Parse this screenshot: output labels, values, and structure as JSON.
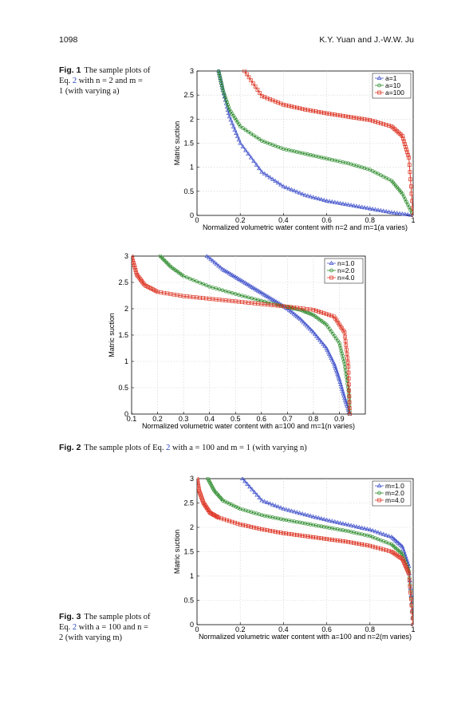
{
  "header": {
    "page_number": "1098",
    "authors": "K.Y. Yuan and J.-W.W. Ju"
  },
  "captions": [
    {
      "label": "Fig. 1",
      "pre": "The sample plots of",
      "line2a": "Eq. ",
      "eq": "2",
      "line2b": " with n = 2 and m =",
      "line3": "1 (with varying a)"
    },
    {
      "label": "Fig. 2",
      "pre": "The sample plots of Eq. ",
      "eq": "2",
      "post": " with a = 100 and m = 1 (with varying n)"
    },
    {
      "label": "Fig. 3",
      "pre": "The sample plots of",
      "line2a": "Eq. ",
      "eq": "2",
      "line2b": " with a = 100 and n =",
      "line3": "2 (with varying m)"
    }
  ],
  "chart_data": [
    {
      "type": "line",
      "xlabel": "Normalized volumetric water content with n=2 and m=1(a varies)",
      "ylabel": "Matric suction",
      "xlim": [
        0,
        1
      ],
      "ylim": [
        0,
        3
      ],
      "xticks": [
        "0",
        "0.2",
        "0.4",
        "0.6",
        "0.8",
        "1"
      ],
      "yticks": [
        "0",
        "0.5",
        "1",
        "1.5",
        "2",
        "2.5",
        "3"
      ],
      "grid": true,
      "legend_position": "top-right",
      "series": [
        {
          "name": "a=1",
          "color": "#4455cc",
          "marker": "triangle",
          "x": [
            0.1,
            0.12,
            0.15,
            0.2,
            0.3,
            0.4,
            0.5,
            0.6,
            0.7,
            0.8,
            0.9,
            1.0
          ],
          "y": [
            3.0,
            2.6,
            2.05,
            1.5,
            0.9,
            0.6,
            0.42,
            0.3,
            0.22,
            0.14,
            0.06,
            0.0
          ]
        },
        {
          "name": "a=10",
          "color": "#2a8a2a",
          "marker": "circle",
          "x": [
            0.1,
            0.12,
            0.15,
            0.2,
            0.3,
            0.4,
            0.5,
            0.6,
            0.7,
            0.8,
            0.9,
            0.95,
            1.0
          ],
          "y": [
            3.0,
            2.6,
            2.2,
            1.85,
            1.55,
            1.38,
            1.28,
            1.18,
            1.08,
            0.95,
            0.72,
            0.45,
            0.0
          ]
        },
        {
          "name": "a=100",
          "color": "#dd3322",
          "marker": "square",
          "x": [
            0.22,
            0.3,
            0.4,
            0.5,
            0.6,
            0.7,
            0.8,
            0.9,
            0.95,
            0.98,
            1.0
          ],
          "y": [
            3.0,
            2.48,
            2.3,
            2.2,
            2.12,
            2.05,
            1.98,
            1.85,
            1.65,
            1.2,
            0.0
          ]
        }
      ]
    },
    {
      "type": "line",
      "xlabel": "Normalized volumetric water content with a=100 and m=1(n varies)",
      "ylabel": "Matric suction",
      "xlim": [
        0.1,
        1.0
      ],
      "ylim": [
        0,
        3
      ],
      "xticks": [
        "0.1",
        "0.2",
        "0.3",
        "0.4",
        "0.5",
        "0.6",
        "0.7",
        "0.8",
        "0.9"
      ],
      "yticks": [
        "0",
        "0.5",
        "1",
        "1.5",
        "2",
        "2.5",
        "3"
      ],
      "grid": true,
      "legend_position": "top-right",
      "series": [
        {
          "name": "n=1.0",
          "color": "#4455cc",
          "marker": "triangle",
          "x": [
            0.39,
            0.45,
            0.5,
            0.55,
            0.6,
            0.65,
            0.7,
            0.75,
            0.8,
            0.85,
            0.88,
            0.9,
            0.92,
            0.94
          ],
          "y": [
            3.0,
            2.75,
            2.6,
            2.45,
            2.3,
            2.15,
            2.0,
            1.8,
            1.55,
            1.25,
            0.95,
            0.65,
            0.3,
            0.0
          ]
        },
        {
          "name": "n=2.0",
          "color": "#2a8a2a",
          "marker": "circle",
          "x": [
            0.21,
            0.25,
            0.3,
            0.4,
            0.5,
            0.6,
            0.7,
            0.75,
            0.8,
            0.85,
            0.9,
            0.92,
            0.935,
            0.94
          ],
          "y": [
            3.0,
            2.8,
            2.62,
            2.42,
            2.28,
            2.15,
            2.03,
            1.98,
            1.88,
            1.7,
            1.35,
            0.95,
            0.45,
            0.0
          ]
        },
        {
          "name": "n=4.0",
          "color": "#dd3322",
          "marker": "square",
          "x": [
            0.1,
            0.12,
            0.15,
            0.2,
            0.3,
            0.4,
            0.5,
            0.6,
            0.7,
            0.8,
            0.88,
            0.92,
            0.935,
            0.94
          ],
          "y": [
            3.0,
            2.65,
            2.45,
            2.32,
            2.24,
            2.19,
            2.14,
            2.09,
            2.04,
            1.98,
            1.85,
            1.55,
            0.9,
            0.0
          ]
        }
      ]
    },
    {
      "type": "line",
      "xlabel": "Normalized volumetric water content with a=100 and n=2(m varies)",
      "ylabel": "Matric suction",
      "xlim": [
        0,
        1
      ],
      "ylim": [
        0,
        3
      ],
      "xticks": [
        "0",
        "0.2",
        "0.4",
        "0.6",
        "0.8",
        "1"
      ],
      "yticks": [
        "0",
        "0.5",
        "1",
        "1.5",
        "2",
        "2.5",
        "3"
      ],
      "grid": true,
      "legend_position": "top-right",
      "series": [
        {
          "name": "m=1.0",
          "color": "#4455cc",
          "marker": "triangle",
          "x": [
            0.21,
            0.3,
            0.4,
            0.5,
            0.6,
            0.7,
            0.8,
            0.9,
            0.95,
            0.98,
            1.0
          ],
          "y": [
            3.0,
            2.55,
            2.38,
            2.26,
            2.15,
            2.05,
            1.95,
            1.8,
            1.6,
            1.2,
            0.0
          ]
        },
        {
          "name": "m=2.0",
          "color": "#2a8a2a",
          "marker": "circle",
          "x": [
            0.05,
            0.08,
            0.12,
            0.2,
            0.3,
            0.4,
            0.5,
            0.6,
            0.7,
            0.8,
            0.9,
            0.95,
            0.98,
            1.0
          ],
          "y": [
            3.0,
            2.75,
            2.55,
            2.38,
            2.25,
            2.16,
            2.08,
            2.0,
            1.92,
            1.82,
            1.65,
            1.45,
            1.1,
            0.0
          ]
        },
        {
          "name": "m=4.0",
          "color": "#dd3322",
          "marker": "square",
          "x": [
            0.0,
            0.01,
            0.03,
            0.06,
            0.1,
            0.2,
            0.3,
            0.4,
            0.5,
            0.6,
            0.7,
            0.8,
            0.9,
            0.95,
            0.98,
            1.0
          ],
          "y": [
            3.0,
            2.75,
            2.5,
            2.3,
            2.2,
            2.06,
            1.96,
            1.88,
            1.82,
            1.76,
            1.7,
            1.62,
            1.5,
            1.35,
            1.05,
            0.0
          ]
        }
      ]
    }
  ]
}
